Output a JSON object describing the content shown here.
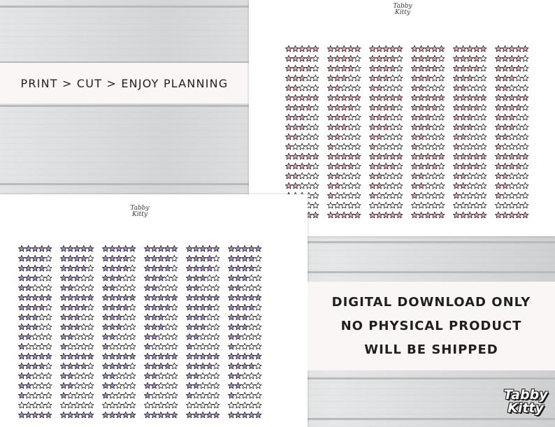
{
  "banner_top": {
    "text": "PRINT > CUT > ENJOY PLANNING"
  },
  "banner_bottom": {
    "line1": "DIGITAL DOWNLOAD ONLY",
    "line2": "NO PHYSICAL PRODUCT",
    "line3": "WILL BE SHIPPED"
  },
  "brand": {
    "line1": "Tabby",
    "line2": "Kitty"
  },
  "colors": {
    "pink_fill": "#e8a3b3",
    "purple_fill": "#a788c9",
    "star_outline": "#222222",
    "banner_bg": "#fbf6f6"
  },
  "sheets": {
    "top": {
      "color": "pink",
      "columns": 6,
      "rows": 18
    },
    "bottom": {
      "color": "purple",
      "columns": 6,
      "rows": 18
    }
  },
  "rating_pattern": [
    5,
    4,
    4,
    3,
    2,
    5,
    4,
    3,
    3,
    2,
    1,
    5,
    4,
    2,
    2,
    1,
    0,
    5
  ]
}
